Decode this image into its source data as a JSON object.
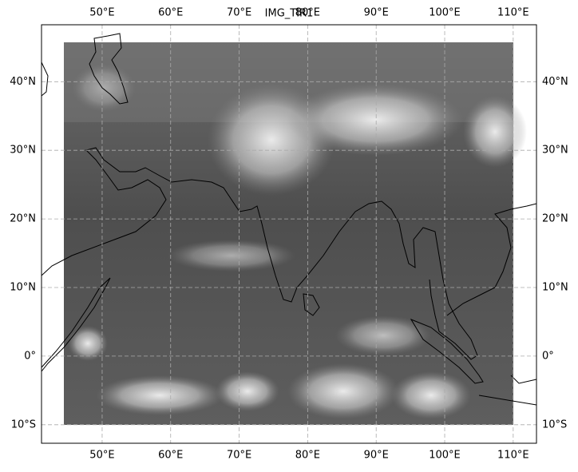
{
  "chart_data": {
    "type": "map",
    "title": "IMG_TIR1",
    "xlim": [
      41.15,
      113.4
    ],
    "ylim": [
      -12.7,
      48.3
    ],
    "xticks": [
      {
        "value": 50,
        "label": "50°E"
      },
      {
        "value": 60,
        "label": "60°E"
      },
      {
        "value": 70,
        "label": "70°E"
      },
      {
        "value": 80,
        "label": "80°E"
      },
      {
        "value": 90,
        "label": "90°E"
      },
      {
        "value": 100,
        "label": "100°E"
      },
      {
        "value": 110,
        "label": "110°E"
      }
    ],
    "yticks": [
      {
        "value": -10,
        "label": "10°S"
      },
      {
        "value": 0,
        "label": "0°"
      },
      {
        "value": 10,
        "label": "10°N"
      },
      {
        "value": 20,
        "label": "20°N"
      },
      {
        "value": 30,
        "label": "30°N"
      },
      {
        "value": 40,
        "label": "40°N"
      }
    ],
    "grid": true
  }
}
